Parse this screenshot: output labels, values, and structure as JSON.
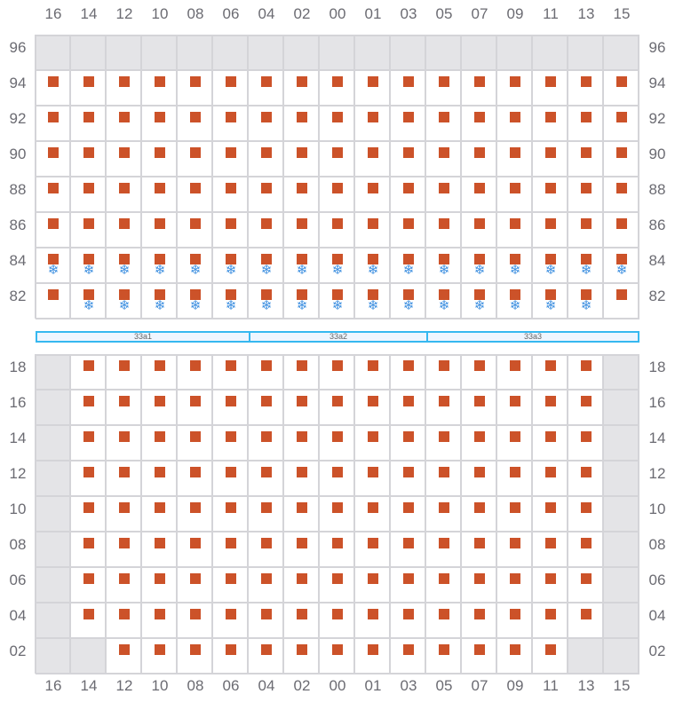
{
  "columns": [
    "16",
    "14",
    "12",
    "10",
    "08",
    "06",
    "04",
    "02",
    "00",
    "01",
    "03",
    "05",
    "07",
    "09",
    "11",
    "13",
    "15"
  ],
  "top_section": {
    "rows": [
      {
        "label": "96",
        "cells": "ggggggggggggggggg"
      },
      {
        "label": "94",
        "cells": "sssssssssssssssss"
      },
      {
        "label": "92",
        "cells": "sssssssssssssssss"
      },
      {
        "label": "90",
        "cells": "sssssssssssssssss"
      },
      {
        "label": "88",
        "cells": "sssssssssssssssss"
      },
      {
        "label": "86",
        "cells": "sssssssssssssssss"
      },
      {
        "label": "84",
        "cells": "fffffffffffffffff"
      },
      {
        "label": "82",
        "cells": "sfffffffffffffffs"
      }
    ]
  },
  "zones": [
    {
      "label": "33a1",
      "span": 6
    },
    {
      "label": "33a2",
      "span": 5
    },
    {
      "label": "33a3",
      "span": 6
    }
  ],
  "bottom_section": {
    "rows": [
      {
        "label": "18",
        "cells": "gsssssssssssssssg"
      },
      {
        "label": "16",
        "cells": "gsssssssssssssssg"
      },
      {
        "label": "14",
        "cells": "gsssssssssssssssg"
      },
      {
        "label": "12",
        "cells": "gsssssssssssssssg"
      },
      {
        "label": "10",
        "cells": "gsssssssssssssssg"
      },
      {
        "label": "08",
        "cells": "gsssssssssssssssg"
      },
      {
        "label": "06",
        "cells": "gsssssssssssssssg"
      },
      {
        "label": "04",
        "cells": "gsssssssssssssssg"
      },
      {
        "label": "02",
        "cells": "ggsssssssssssssgg"
      }
    ]
  },
  "legend_icons": {
    "s": "occupied-square-icon",
    "f": "snowflake-icon",
    "g": "unavailable-cell"
  },
  "colors": {
    "occupied": "#cc5229",
    "snowflake": "#3d8fe0",
    "unavailable": "#e4e4e7",
    "zone_border": "#36b8f0"
  }
}
